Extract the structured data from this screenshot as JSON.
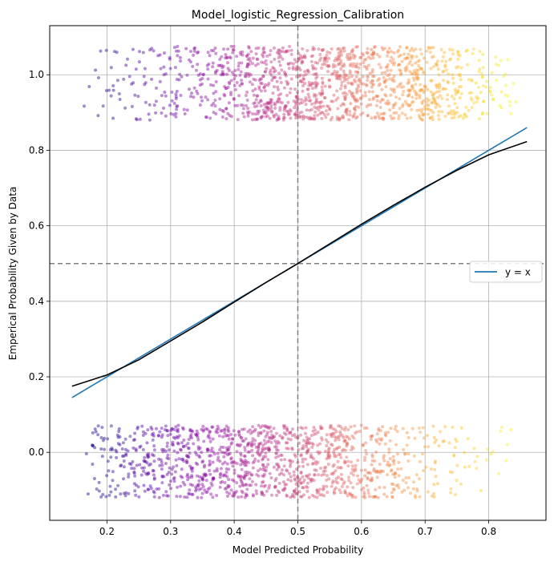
{
  "chart_data": {
    "type": "scatter",
    "title": "Model_logistic_Regression_Calibration",
    "xlabel": "Model Predicted Probability",
    "ylabel": "Emperical Probability Given by Data",
    "xlim": [
      0.11,
      0.89
    ],
    "ylim": [
      -0.18,
      1.13
    ],
    "xticks": [
      {
        "value": 0.2,
        "label": "0.2"
      },
      {
        "value": 0.3,
        "label": "0.3"
      },
      {
        "value": 0.4,
        "label": "0.4"
      },
      {
        "value": 0.5,
        "label": "0.5"
      },
      {
        "value": 0.6,
        "label": "0.6"
      },
      {
        "value": 0.7,
        "label": "0.7"
      },
      {
        "value": 0.8,
        "label": "0.8"
      }
    ],
    "yticks": [
      {
        "value": 0.0,
        "label": "0.0"
      },
      {
        "value": 0.2,
        "label": "0.2"
      },
      {
        "value": 0.4,
        "label": "0.4"
      },
      {
        "value": 0.6,
        "label": "0.6"
      },
      {
        "value": 0.8,
        "label": "0.8"
      },
      {
        "value": 1.0,
        "label": "1.0"
      }
    ],
    "grid": true,
    "legend_position": "right",
    "reference_lines": {
      "vertical_x": 0.5,
      "horizontal_y": 0.5,
      "color": "#808080",
      "style": "dashed"
    },
    "series": [
      {
        "name": "y = x",
        "type": "line",
        "color": "#1f77b4",
        "x": [
          0.145,
          0.86
        ],
        "y": [
          0.145,
          0.86
        ]
      },
      {
        "type": "line",
        "color": "#000000",
        "x": [
          0.145,
          0.2,
          0.25,
          0.3,
          0.35,
          0.4,
          0.45,
          0.5,
          0.55,
          0.6,
          0.65,
          0.7,
          0.75,
          0.8,
          0.86
        ],
        "y": [
          0.175,
          0.205,
          0.245,
          0.295,
          0.345,
          0.398,
          0.45,
          0.5,
          0.552,
          0.604,
          0.654,
          0.702,
          0.747,
          0.788,
          0.823
        ]
      },
      {
        "type": "scatter",
        "colormap": "plasma",
        "marker_opacity": 0.45,
        "description_of_points": "jittered outcomes: y=1 cluster jittered within [0.88, 1.07], y=0 cluster jittered within [-0.12, 0.07]; x spans 0.16 to 0.84; color maps x (purple low, yellow high)",
        "clusters": [
          {
            "outcome": 1,
            "x_range": [
              0.165,
              0.84
            ],
            "y_range": [
              0.88,
              1.075
            ]
          },
          {
            "outcome": 0,
            "x_range": [
              0.165,
              0.84
            ],
            "y_range": [
              -0.12,
              0.072
            ]
          }
        ]
      }
    ]
  },
  "legend": {
    "label": "y = x"
  }
}
